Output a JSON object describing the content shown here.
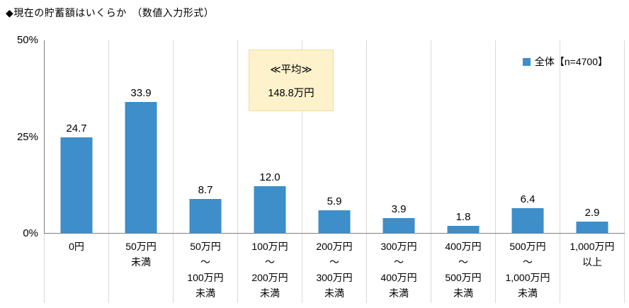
{
  "title": "◆現在の貯蓄額はいくらか　（数値入力形式）",
  "legend": {
    "label": "全体【n=4700】",
    "swatch_color": "#3d8ec9"
  },
  "average": {
    "label": "≪平均≫",
    "value": "148.8万円",
    "box_color": "#fdf2cc"
  },
  "y_axis": {
    "ticks": [
      "50%",
      "25%",
      "0%"
    ]
  },
  "chart_data": {
    "type": "bar",
    "title": "現在の貯蓄額はいくらか（数値入力形式）",
    "xlabel": "",
    "ylabel": "%",
    "ylim": [
      0,
      50
    ],
    "yticks": [
      "0%",
      "25%",
      "50%"
    ],
    "grid": "vertical category separators",
    "legend_position": "top-right",
    "series_name": "全体【n=4700】",
    "bar_color": "#3d8ec9",
    "categories": [
      "0円",
      "50万円未満",
      "50万円～100万円未満",
      "100万円～200万円未満",
      "200万円～300万円未満",
      "300万円～400万円未満",
      "400万円～500万円未満",
      "500万円～1,000万円未満",
      "1,000万円以上"
    ],
    "category_lines": [
      [
        "0円"
      ],
      [
        "50万円",
        "未満"
      ],
      [
        "50万円",
        "～",
        "100万円",
        "未満"
      ],
      [
        "100万円",
        "～",
        "200万円",
        "未満"
      ],
      [
        "200万円",
        "～",
        "300万円",
        "未満"
      ],
      [
        "300万円",
        "～",
        "400万円",
        "未満"
      ],
      [
        "400万円",
        "～",
        "500万円",
        "未満"
      ],
      [
        "500万円",
        "～",
        "1,000万円",
        "未満"
      ],
      [
        "1,000万円",
        "以上"
      ]
    ],
    "values": [
      24.7,
      33.9,
      8.7,
      12.0,
      5.9,
      3.9,
      1.8,
      6.4,
      2.9
    ],
    "value_labels": [
      "24.7",
      "33.9",
      "8.7",
      "12.0",
      "5.9",
      "3.9",
      "1.8",
      "6.4",
      "2.9"
    ],
    "annotation": "≪平均≫ 148.8万円"
  }
}
